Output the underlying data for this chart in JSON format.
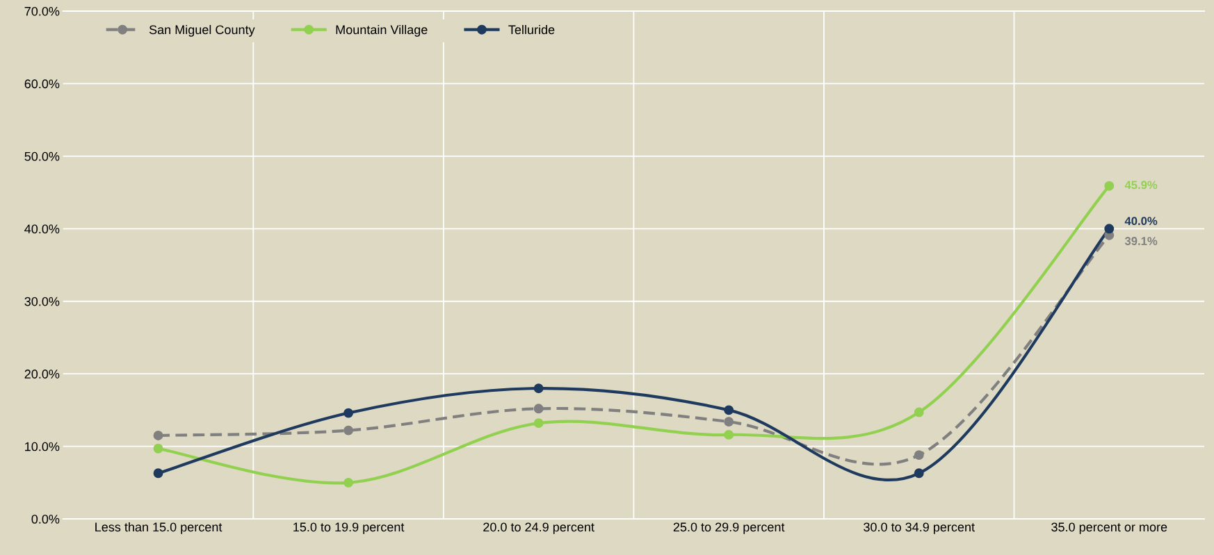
{
  "chart_data": {
    "type": "line",
    "categories": [
      "Less than 15.0 percent",
      "15.0 to 19.9 percent",
      "20.0 to 24.9 percent",
      "25.0 to 29.9 percent",
      "30.0 to 34.9 percent",
      "35.0 percent or more"
    ],
    "series": [
      {
        "name": "San Miguel County",
        "color": "#808080",
        "line_style": "dashed",
        "values": [
          11.5,
          12.2,
          15.2,
          13.4,
          8.8,
          39.1
        ],
        "value_labels": [
          null,
          null,
          null,
          null,
          null,
          "39.1%"
        ]
      },
      {
        "name": "Mountain Village",
        "color": "#92d050",
        "line_style": "solid",
        "values": [
          9.7,
          5.0,
          13.2,
          11.6,
          14.7,
          45.9
        ],
        "value_labels": [
          null,
          null,
          null,
          null,
          null,
          "45.9%"
        ]
      },
      {
        "name": "Telluride",
        "color": "#1f3a5f",
        "line_style": "solid",
        "values": [
          6.3,
          14.6,
          18.0,
          15.0,
          6.3,
          40.0
        ],
        "value_labels": [
          null,
          null,
          null,
          null,
          null,
          "40.0%"
        ]
      }
    ],
    "ylim": [
      0,
      70
    ],
    "yticks": [
      {
        "value": 0,
        "label": "0.0%"
      },
      {
        "value": 10,
        "label": "10.0%"
      },
      {
        "value": 20,
        "label": "20.0%"
      },
      {
        "value": 30,
        "label": "30.0%"
      },
      {
        "value": 40,
        "label": "40.0%"
      },
      {
        "value": 50,
        "label": "50.0%"
      },
      {
        "value": 60,
        "label": "60.0%"
      },
      {
        "value": 70,
        "label": "70.0%"
      }
    ],
    "grid": true,
    "legend": "top left",
    "marker": "circle"
  }
}
